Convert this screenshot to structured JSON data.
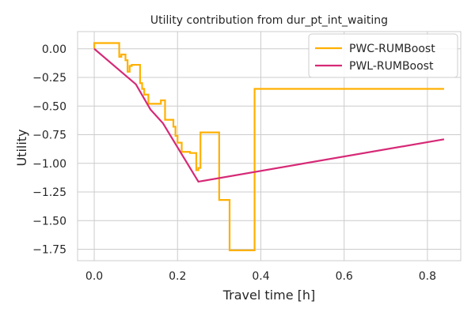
{
  "chart_data": {
    "type": "line",
    "title": "Utility contribution from dur_pt_int_waiting",
    "xlabel": "Travel time [h]",
    "ylabel": "Utility",
    "xlim": [
      -0.04,
      0.88
    ],
    "ylim": [
      -1.85,
      0.15
    ],
    "xticks": [
      0.0,
      0.2,
      0.4,
      0.6,
      0.8
    ],
    "xtick_labels": [
      "0.0",
      "0.2",
      "0.4",
      "0.6",
      "0.8"
    ],
    "yticks": [
      0.0,
      -0.25,
      -0.5,
      -0.75,
      -1.0,
      -1.25,
      -1.5,
      -1.75
    ],
    "ytick_labels": [
      "0.00",
      "−0.25",
      "−0.50",
      "−0.75",
      "−1.00",
      "−1.25",
      "−1.50",
      "−1.75"
    ],
    "grid": true,
    "legend_position": "top-right",
    "series": [
      {
        "name": "PWC-RUMBoost",
        "color": "#ffb000",
        "step": true,
        "x": [
          0.0,
          0.0,
          0.06,
          0.06,
          0.065,
          0.065,
          0.075,
          0.075,
          0.08,
          0.08,
          0.085,
          0.085,
          0.09,
          0.09,
          0.11,
          0.11,
          0.115,
          0.115,
          0.12,
          0.12,
          0.13,
          0.13,
          0.16,
          0.16,
          0.17,
          0.17,
          0.19,
          0.19,
          0.195,
          0.195,
          0.2,
          0.2,
          0.21,
          0.21,
          0.23,
          0.23,
          0.245,
          0.245,
          0.25,
          0.25,
          0.255,
          0.255,
          0.3,
          0.3,
          0.325,
          0.325,
          0.385,
          0.385,
          0.42,
          0.42,
          0.84
        ],
        "y": [
          0.0,
          0.05,
          0.05,
          -0.07,
          -0.07,
          -0.05,
          -0.05,
          -0.1,
          -0.1,
          -0.2,
          -0.2,
          -0.15,
          -0.15,
          -0.14,
          -0.14,
          -0.3,
          -0.3,
          -0.35,
          -0.35,
          -0.4,
          -0.4,
          -0.48,
          -0.48,
          -0.45,
          -0.45,
          -0.62,
          -0.62,
          -0.68,
          -0.68,
          -0.76,
          -0.76,
          -0.82,
          -0.82,
          -0.9,
          -0.9,
          -0.91,
          -0.91,
          -1.06,
          -1.06,
          -1.04,
          -1.04,
          -0.73,
          -0.73,
          -1.32,
          -1.32,
          -1.76,
          -1.76,
          -0.35,
          -0.35,
          -0.35,
          -0.35
        ]
      },
      {
        "name": "PWL-RUMBoost",
        "color": "#d62976",
        "step": false,
        "x": [
          0.0,
          0.1,
          0.135,
          0.165,
          0.25,
          0.84
        ],
        "y": [
          0.0,
          -0.31,
          -0.53,
          -0.65,
          -1.16,
          -0.79
        ]
      }
    ]
  }
}
